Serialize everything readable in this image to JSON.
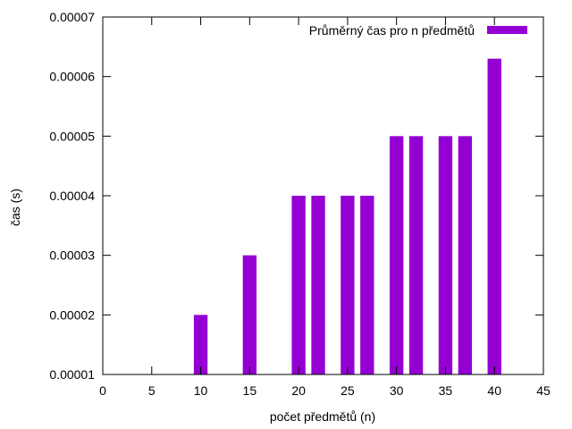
{
  "chart_data": {
    "type": "bar",
    "xlabel": "počet předmětů (n)",
    "ylabel": "čas (s)",
    "xlim": [
      0,
      45
    ],
    "ylim": [
      1e-05,
      7e-05
    ],
    "x_ticks": [
      0,
      5,
      10,
      15,
      20,
      25,
      30,
      35,
      40,
      45
    ],
    "x_tick_labels": [
      "0",
      "5",
      "10",
      "15",
      "20",
      "25",
      "30",
      "35",
      "40",
      "45"
    ],
    "y_ticks": [
      1e-05,
      2e-05,
      3e-05,
      4e-05,
      5e-05,
      6e-05,
      7e-05
    ],
    "y_tick_labels": [
      "0.00001",
      "0.00002",
      "0.00003",
      "0.00004",
      "0.00005",
      "0.00006",
      "0.00007"
    ],
    "bar_width": 1.4,
    "grid": false,
    "legend_position": "top-right",
    "series": [
      {
        "name": "Průměrný čas pro n předmětů",
        "color": "#9400d3",
        "points": [
          {
            "x": 10,
            "y": 2e-05
          },
          {
            "x": 15,
            "y": 3e-05
          },
          {
            "x": 20,
            "y": 4e-05
          },
          {
            "x": 22,
            "y": 4e-05
          },
          {
            "x": 25,
            "y": 4e-05
          },
          {
            "x": 27,
            "y": 4e-05
          },
          {
            "x": 30,
            "y": 5e-05
          },
          {
            "x": 32,
            "y": 5e-05
          },
          {
            "x": 35,
            "y": 5e-05
          },
          {
            "x": 37,
            "y": 5e-05
          },
          {
            "x": 40,
            "y": 6.3e-05
          }
        ]
      }
    ]
  }
}
